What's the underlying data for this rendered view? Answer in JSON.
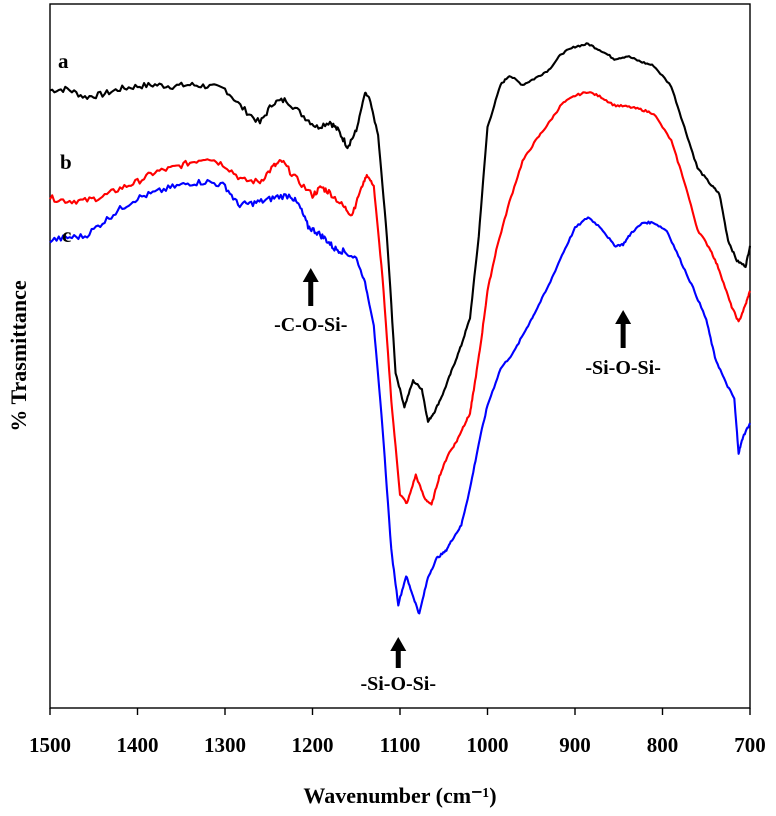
{
  "chart_data": {
    "type": "line",
    "xlabel": "Wavenumber (cm⁻¹)",
    "ylabel": "% Trasmittance",
    "xlim": [
      1500,
      700
    ],
    "x_reversed": true,
    "y_ticks_shown": false,
    "xticks": [
      "1500",
      "1400",
      "1300",
      "1200",
      "1100",
      "1000",
      "900",
      "800",
      "700"
    ],
    "xtick_values": [
      1500,
      1400,
      1300,
      1200,
      1100,
      1000,
      900,
      800,
      700
    ],
    "ylim": [
      0,
      100
    ],
    "grid": false,
    "series": [
      {
        "name": "a",
        "color": "#000000",
        "points": [
          [
            1500,
            89.4
          ],
          [
            1480,
            89.6
          ],
          [
            1460,
            88.4
          ],
          [
            1440,
            88.8
          ],
          [
            1420,
            89.6
          ],
          [
            1400,
            90.0
          ],
          [
            1380,
            90.2
          ],
          [
            1360,
            90.0
          ],
          [
            1340,
            90.2
          ],
          [
            1320,
            90.0
          ],
          [
            1300,
            89.6
          ],
          [
            1280,
            86.8
          ],
          [
            1260,
            84.6
          ],
          [
            1245,
            87.6
          ],
          [
            1230,
            88.0
          ],
          [
            1210,
            85.6
          ],
          [
            1195,
            84.0
          ],
          [
            1180,
            84.8
          ],
          [
            1170,
            83.4
          ],
          [
            1160,
            81.2
          ],
          [
            1150,
            83.4
          ],
          [
            1140,
            89.0
          ],
          [
            1135,
            88.2
          ],
          [
            1125,
            82.8
          ],
          [
            1115,
            68.0
          ],
          [
            1105,
            48.0
          ],
          [
            1095,
            43.0
          ],
          [
            1085,
            46.8
          ],
          [
            1075,
            45.6
          ],
          [
            1068,
            40.8
          ],
          [
            1060,
            42.4
          ],
          [
            1050,
            45.2
          ],
          [
            1040,
            48.6
          ],
          [
            1030,
            52.0
          ],
          [
            1020,
            56.0
          ],
          [
            1010,
            68.0
          ],
          [
            1000,
            84.0
          ],
          [
            985,
            90.2
          ],
          [
            975,
            91.6
          ],
          [
            960,
            90.2
          ],
          [
            945,
            91.2
          ],
          [
            930,
            92.4
          ],
          [
            915,
            94.8
          ],
          [
            900,
            95.8
          ],
          [
            885,
            96.2
          ],
          [
            870,
            95.2
          ],
          [
            855,
            94.0
          ],
          [
            840,
            94.4
          ],
          [
            825,
            93.6
          ],
          [
            810,
            93.0
          ],
          [
            790,
            90.0
          ],
          [
            775,
            84.0
          ],
          [
            760,
            78.0
          ],
          [
            745,
            75.6
          ],
          [
            735,
            74.2
          ],
          [
            725,
            67.4
          ],
          [
            715,
            64.4
          ],
          [
            705,
            63.6
          ],
          [
            700,
            66.6
          ]
        ]
      },
      {
        "name": "b",
        "color": "#ff0000",
        "points": [
          [
            1500,
            73.6
          ],
          [
            1480,
            73.2
          ],
          [
            1460,
            73.2
          ],
          [
            1440,
            73.8
          ],
          [
            1420,
            75.0
          ],
          [
            1400,
            76.0
          ],
          [
            1380,
            77.4
          ],
          [
            1360,
            78.0
          ],
          [
            1340,
            78.8
          ],
          [
            1320,
            79.6
          ],
          [
            1300,
            78.4
          ],
          [
            1280,
            76.2
          ],
          [
            1260,
            76.0
          ],
          [
            1245,
            78.2
          ],
          [
            1235,
            79.0
          ],
          [
            1220,
            76.6
          ],
          [
            1200,
            74.0
          ],
          [
            1190,
            75.2
          ],
          [
            1180,
            74.4
          ],
          [
            1165,
            72.4
          ],
          [
            1155,
            71.2
          ],
          [
            1145,
            74.8
          ],
          [
            1138,
            77.0
          ],
          [
            1130,
            75.4
          ],
          [
            1120,
            62.0
          ],
          [
            1110,
            44.0
          ],
          [
            1100,
            30.2
          ],
          [
            1092,
            28.8
          ],
          [
            1082,
            33.0
          ],
          [
            1072,
            29.6
          ],
          [
            1064,
            28.6
          ],
          [
            1055,
            32.8
          ],
          [
            1045,
            36.0
          ],
          [
            1035,
            38.0
          ],
          [
            1028,
            40.0
          ],
          [
            1020,
            42.0
          ],
          [
            1015,
            46.0
          ],
          [
            1008,
            52.0
          ],
          [
            1000,
            60.0
          ],
          [
            990,
            66.0
          ],
          [
            975,
            73.0
          ],
          [
            960,
            79.0
          ],
          [
            945,
            82.0
          ],
          [
            930,
            84.6
          ],
          [
            915,
            87.4
          ],
          [
            900,
            88.6
          ],
          [
            885,
            89.2
          ],
          [
            870,
            88.4
          ],
          [
            855,
            87.2
          ],
          [
            840,
            87.0
          ],
          [
            825,
            86.6
          ],
          [
            810,
            86.0
          ],
          [
            790,
            82.0
          ],
          [
            775,
            76.0
          ],
          [
            760,
            69.0
          ],
          [
            745,
            66.0
          ],
          [
            735,
            63.0
          ],
          [
            722,
            58.0
          ],
          [
            713,
            55.4
          ],
          [
            705,
            58.0
          ],
          [
            700,
            60.0
          ]
        ]
      },
      {
        "name": "c",
        "color": "#0000ff",
        "points": [
          [
            1500,
            67.4
          ],
          [
            1480,
            67.8
          ],
          [
            1460,
            68.0
          ],
          [
            1440,
            70.0
          ],
          [
            1420,
            72.0
          ],
          [
            1400,
            73.6
          ],
          [
            1380,
            74.4
          ],
          [
            1360,
            75.2
          ],
          [
            1340,
            75.8
          ],
          [
            1320,
            76.0
          ],
          [
            1300,
            75.4
          ],
          [
            1285,
            72.6
          ],
          [
            1270,
            72.8
          ],
          [
            1255,
            73.2
          ],
          [
            1240,
            73.8
          ],
          [
            1225,
            74.0
          ],
          [
            1215,
            72.4
          ],
          [
            1205,
            69.4
          ],
          [
            1195,
            68.6
          ],
          [
            1185,
            67.6
          ],
          [
            1175,
            66.2
          ],
          [
            1165,
            65.8
          ],
          [
            1150,
            64.8
          ],
          [
            1140,
            61.2
          ],
          [
            1130,
            55.0
          ],
          [
            1120,
            40.0
          ],
          [
            1110,
            22.0
          ],
          [
            1102,
            14.0
          ],
          [
            1093,
            18.2
          ],
          [
            1085,
            15.2
          ],
          [
            1078,
            12.6
          ],
          [
            1068,
            18.0
          ],
          [
            1058,
            20.8
          ],
          [
            1048,
            21.8
          ],
          [
            1040,
            23.6
          ],
          [
            1030,
            25.6
          ],
          [
            1020,
            31.0
          ],
          [
            1010,
            37.6
          ],
          [
            1000,
            43.2
          ],
          [
            985,
            48.6
          ],
          [
            970,
            51.0
          ],
          [
            955,
            54.6
          ],
          [
            945,
            57.0
          ],
          [
            930,
            60.8
          ],
          [
            915,
            65.2
          ],
          [
            900,
            69.2
          ],
          [
            885,
            70.8
          ],
          [
            870,
            69.2
          ],
          [
            855,
            66.6
          ],
          [
            845,
            66.8
          ],
          [
            835,
            68.6
          ],
          [
            822,
            70.0
          ],
          [
            810,
            70.0
          ],
          [
            795,
            68.8
          ],
          [
            780,
            64.6
          ],
          [
            765,
            60.4
          ],
          [
            750,
            55.8
          ],
          [
            740,
            50.2
          ],
          [
            728,
            46.6
          ],
          [
            718,
            44.2
          ],
          [
            713,
            36.2
          ],
          [
            708,
            38.6
          ],
          [
            700,
            40.6
          ]
        ]
      }
    ],
    "annotations": [
      {
        "text": "-C-O-Si-",
        "x": 1202
      },
      {
        "text": "-Si-O-Si-",
        "x": 1102
      },
      {
        "text": "-Si-O-Si-",
        "x": 845
      }
    ]
  }
}
